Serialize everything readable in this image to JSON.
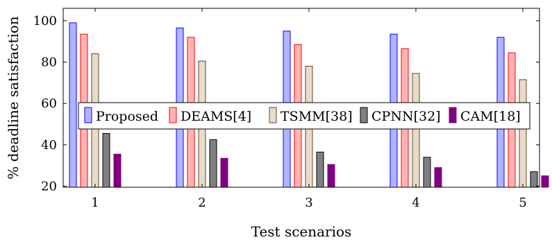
{
  "chart_data": {
    "type": "bar",
    "categories": [
      "1",
      "2",
      "3",
      "4",
      "5"
    ],
    "series": [
      {
        "name": "Proposed",
        "values": [
          99,
          96.5,
          95,
          93.5,
          92
        ],
        "fill": "#b3b3ff",
        "stroke": "#0000ff"
      },
      {
        "name": "DEAMS[4]",
        "values": [
          93.5,
          92,
          88.5,
          86.5,
          84.5
        ],
        "fill": "#ffb3b3",
        "stroke": "#ff0000"
      },
      {
        "name": "TSMM[38]",
        "values": [
          84,
          80.5,
          78,
          74.5,
          71.5
        ],
        "fill": "#eadbc8",
        "stroke": "#5a4632"
      },
      {
        "name": "CPNN[32]",
        "values": [
          45.5,
          42.5,
          36.5,
          34,
          27
        ],
        "fill": "#808080",
        "stroke": "#000000"
      },
      {
        "name": "CAM[18]",
        "values": [
          35.5,
          33.5,
          30.5,
          29,
          25
        ],
        "fill": "#800080",
        "stroke": "#800080"
      }
    ],
    "xlabel": "Test scenarios",
    "ylabel": "% deadline satisfaction",
    "ylim": [
      19.5,
      106
    ],
    "yticks": [
      "20",
      "40",
      "60",
      "80",
      "100"
    ],
    "legend": "center",
    "grid": false
  }
}
